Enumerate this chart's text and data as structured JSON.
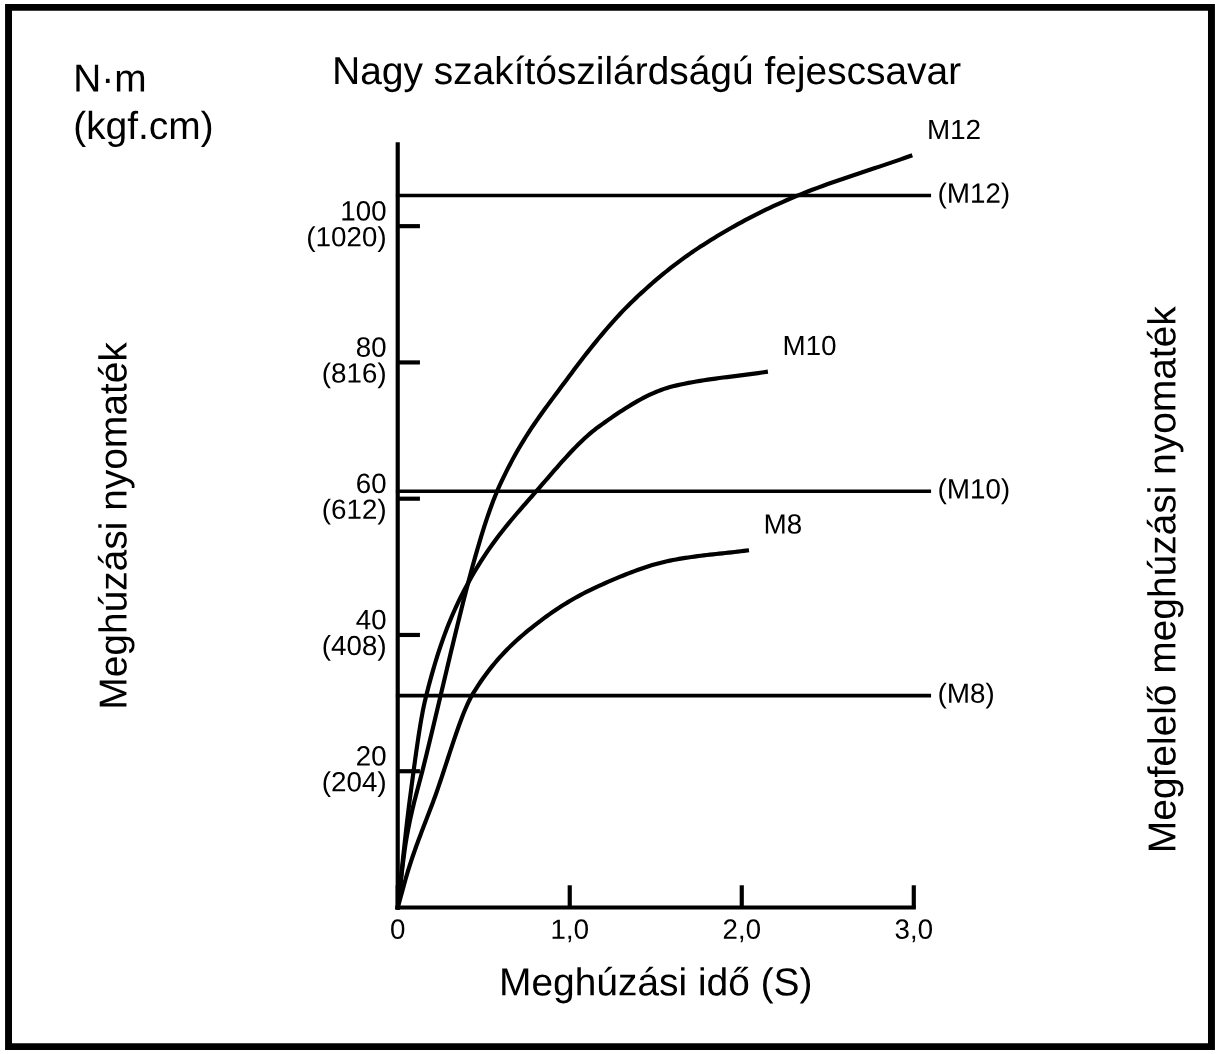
{
  "chart_data": {
    "type": "line",
    "title": "Nagy szakítószilárdságú fejescsavar",
    "xlabel": "Meghúzási idő (S)",
    "y2label": "Meghúzási nyomaték",
    "annotations": [
      "N·m\n(kgf.cm)",
      "Megfelelő meghúzási nyomaték"
    ],
    "series": [
      {
        "name": "M12",
        "color": "#000000",
        "x": [
          0,
          0.05,
          0.15,
          0.59,
          0.98,
          1.37,
          1.76,
          2.26,
          2.98
        ],
        "values": [
          0,
          10,
          20.7,
          61.8,
          77.4,
          89.1,
          97,
          103.8,
          110.3
        ]
      },
      {
        "name": "M10",
        "color": "#000000",
        "x": [
          0,
          0.07,
          0.16,
          0.4,
          0.83,
          1.17,
          1.6,
          2.14
        ],
        "values": [
          0,
          15.8,
          30.5,
          47.2,
          61.8,
          70.6,
          76.5,
          78.6
        ]
      },
      {
        "name": "M8",
        "color": "#000000",
        "x": [
          0,
          0.07,
          0.21,
          0.44,
          0.79,
          1.17,
          1.6,
          2.03
        ],
        "values": [
          0,
          6.2,
          15.8,
          31.5,
          41.3,
          47.2,
          51,
          52.4
        ]
      }
    ],
    "ref_lines": [
      {
        "axis": "y",
        "value": 104.5,
        "label": "(M12)",
        "color": "#000000"
      },
      {
        "axis": "y",
        "value": 61.1,
        "label": "(M10)",
        "color": "#000000"
      },
      {
        "axis": "y",
        "value": 31.1,
        "label": "(M8)",
        "color": "#000000"
      }
    ],
    "xlim": [
      0,
      3
    ],
    "ylim": [
      0,
      112
    ],
    "xticks": [
      0,
      {
        "value": 1,
        "label": "1,0"
      },
      {
        "value": 2,
        "label": "2,0"
      },
      {
        "value": 3,
        "label": "3,0"
      }
    ],
    "yticks": [
      20,
      40,
      60,
      80,
      100
    ],
    "y2lim": [
      0,
      1142.4
    ],
    "y2ticks": [
      {
        "value": 204,
        "label": "(204)"
      },
      {
        "value": 408,
        "label": "(408)"
      },
      {
        "value": 612,
        "label": "(612)"
      },
      {
        "value": 816,
        "label": "(816)"
      },
      {
        "value": 1020,
        "label": "(1020)"
      }
    ],
    "grid": false,
    "legend": false,
    "marker": "none",
    "line_style": "solid"
  }
}
